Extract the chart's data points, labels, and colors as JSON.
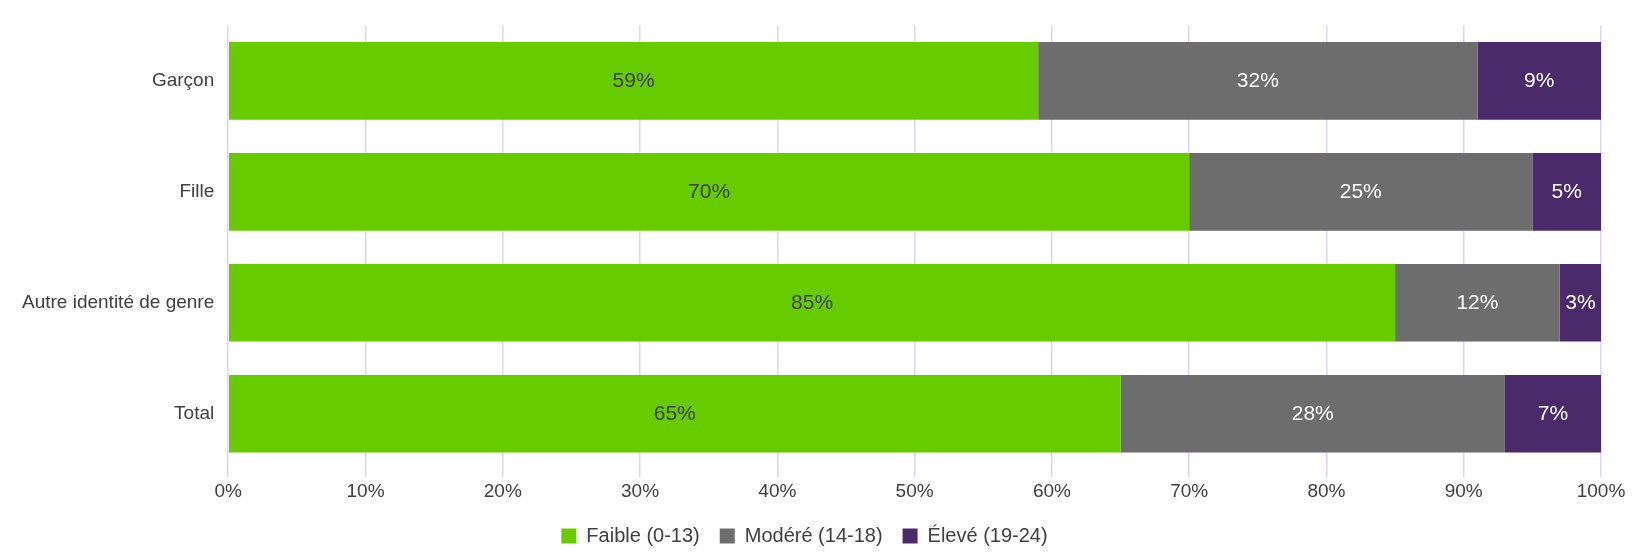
{
  "chart_data": {
    "type": "bar",
    "orientation": "horizontal",
    "stacked": true,
    "categories": [
      "Garçon",
      "Fille",
      "Autre identité de genre",
      "Total"
    ],
    "series": [
      {
        "name": "Faible (0-13)",
        "color": "#66cc00",
        "values": [
          59,
          70,
          85,
          65
        ],
        "value_labels": [
          "59%",
          "70%",
          "85%",
          "65%"
        ]
      },
      {
        "name": "Modéré (14-18)",
        "color": "#6d6d6d",
        "values": [
          32,
          25,
          12,
          28
        ],
        "value_labels": [
          "32%",
          "25%",
          "12%",
          "28%"
        ]
      },
      {
        "name": "Élevé (19-24)",
        "color": "#4b2a6b",
        "values": [
          9,
          5,
          3,
          7
        ],
        "value_labels": [
          "9%",
          "5%",
          "3%",
          "7%"
        ]
      }
    ],
    "xlim": [
      0,
      100
    ],
    "xticks": [
      {
        "value": 0,
        "label": "0%"
      },
      {
        "value": 10,
        "label": "10%"
      },
      {
        "value": 20,
        "label": "20%"
      },
      {
        "value": 30,
        "label": "30%"
      },
      {
        "value": 40,
        "label": "40%"
      },
      {
        "value": 50,
        "label": "50%"
      },
      {
        "value": 60,
        "label": "60%"
      },
      {
        "value": 70,
        "label": "70%"
      },
      {
        "value": 80,
        "label": "80%"
      },
      {
        "value": 90,
        "label": "90%"
      },
      {
        "value": 100,
        "label": "100%"
      }
    ],
    "grid": "x",
    "legend": "bottom"
  }
}
